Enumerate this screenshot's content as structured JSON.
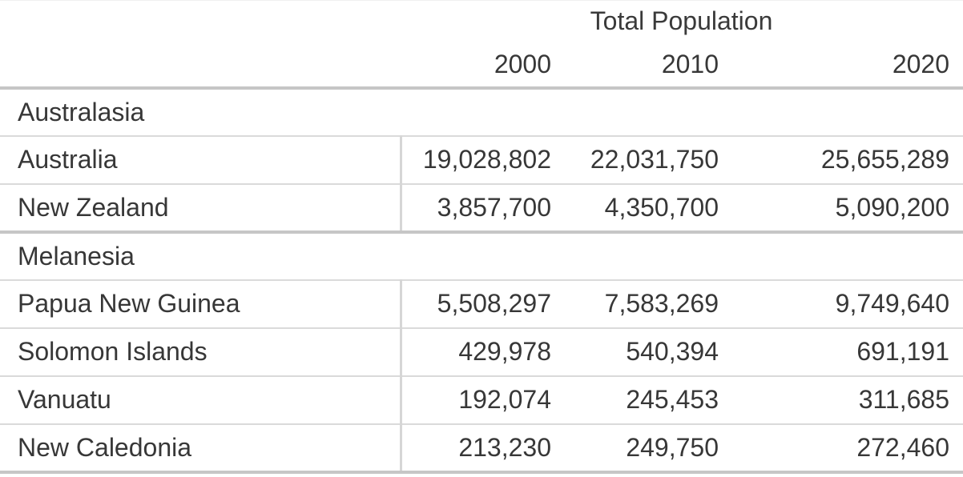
{
  "chart_data": {
    "type": "table",
    "title": "Total Population",
    "column_group_label": "Total Population",
    "columns": [
      "2000",
      "2010",
      "2020"
    ],
    "sections": [
      {
        "region": "Australasia",
        "rows": [
          {
            "label": "Australia",
            "values": [
              19028802,
              22031750,
              25655289
            ],
            "display": [
              "19,028,802",
              "22,031,750",
              "25,655,289"
            ]
          },
          {
            "label": "New Zealand",
            "values": [
              3857700,
              4350700,
              5090200
            ],
            "display": [
              "3,857,700",
              "4,350,700",
              "5,090,200"
            ]
          }
        ]
      },
      {
        "region": "Melanesia",
        "rows": [
          {
            "label": "Papua New Guinea",
            "values": [
              5508297,
              7583269,
              9749640
            ],
            "display": [
              "5,508,297",
              "7,583,269",
              "9,749,640"
            ]
          },
          {
            "label": "Solomon Islands",
            "values": [
              429978,
              540394,
              691191
            ],
            "display": [
              "429,978",
              "540,394",
              "691,191"
            ]
          },
          {
            "label": "Vanuatu",
            "values": [
              192074,
              245453,
              311685
            ],
            "display": [
              "192,074",
              "245,453",
              "311,685"
            ]
          },
          {
            "label": "New Caledonia",
            "values": [
              213230,
              249750,
              272460
            ],
            "display": [
              "213,230",
              "249,750",
              "272,460"
            ]
          }
        ]
      }
    ],
    "layout": {
      "grid": "horizontal-row-separators",
      "name_column_divider": true,
      "number_alignment": "right"
    }
  },
  "colors": {
    "background": "#ffffff",
    "text": "#373737",
    "boundary_line": "#c6c6c6",
    "row_line": "#dadada",
    "divider_line": "#d6d6d6"
  }
}
